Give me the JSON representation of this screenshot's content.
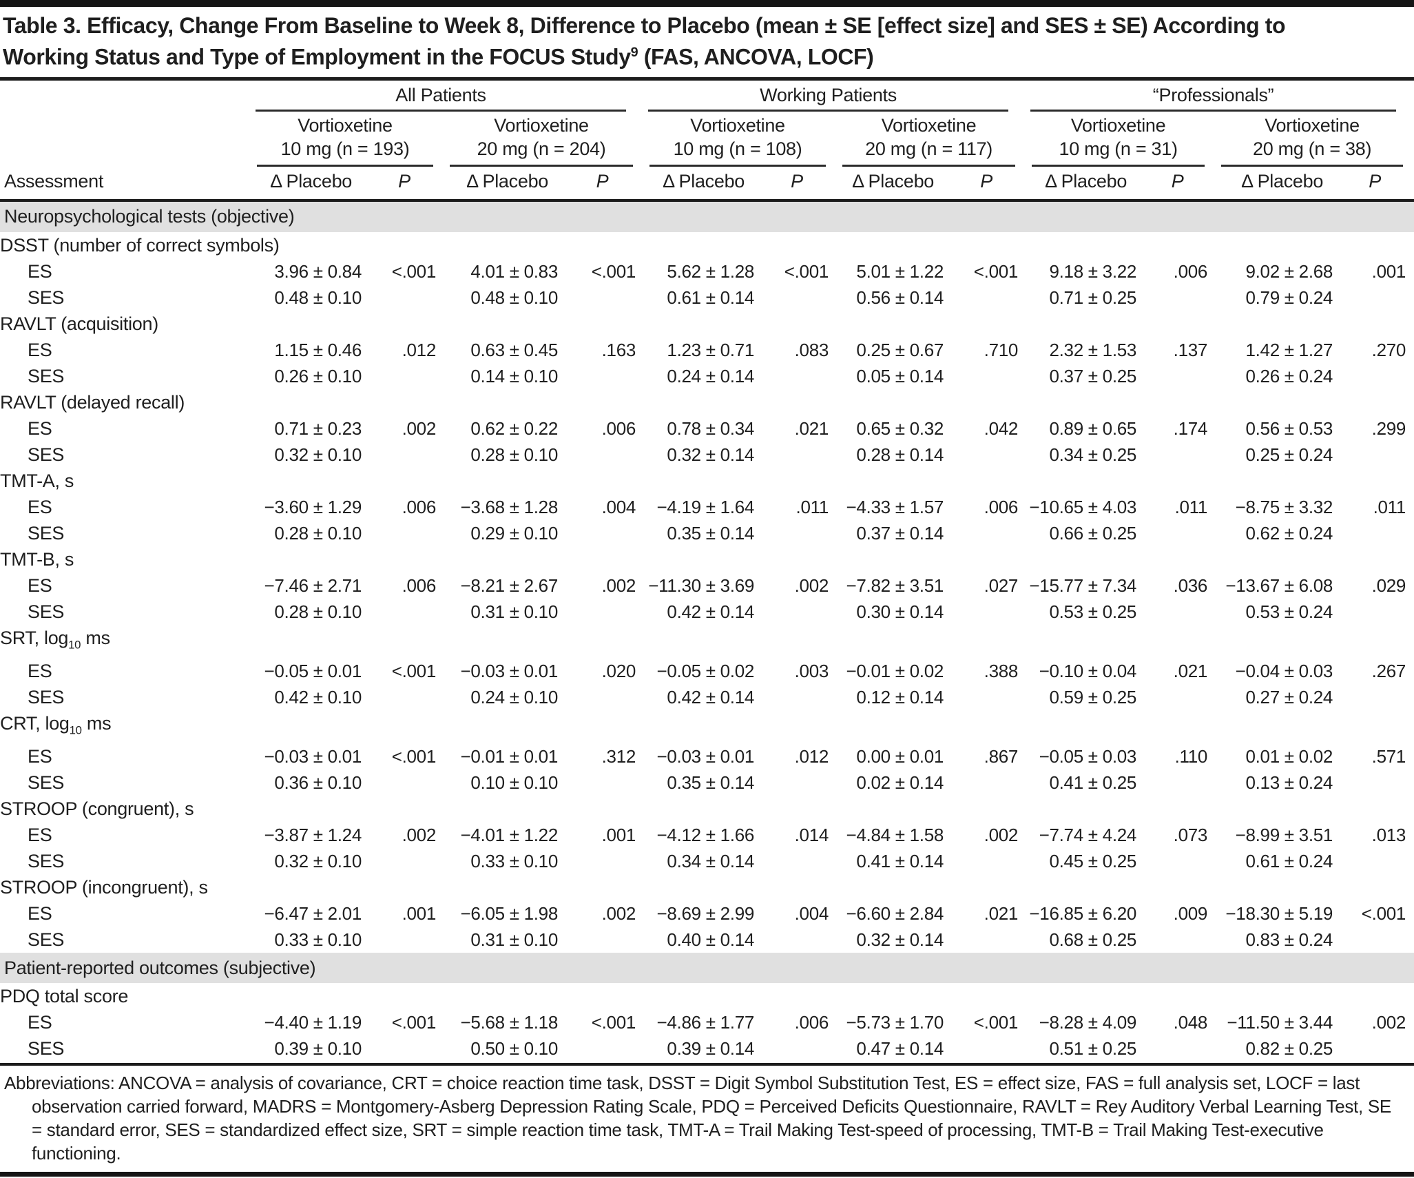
{
  "title": {
    "line1": "Table 3. Efficacy, Change From Baseline to Week 8, Difference to Placebo (mean ± SE [effect size] and SES ± SE) According to",
    "line2_pre": "Working Status and Type of Employment in the FOCUS Study",
    "line2_sup": "9",
    "line2_post": " (FAS, ANCOVA, LOCF)"
  },
  "header": {
    "assessment_label": "Assessment",
    "delta_label": "Δ Placebo",
    "p_label": "P",
    "groups": [
      "All Patients",
      "Working Patients",
      "“Professionals”"
    ],
    "arms": [
      {
        "drug": "Vortioxetine",
        "dose": "10 mg (n = 193)"
      },
      {
        "drug": "Vortioxetine",
        "dose": "20 mg (n = 204)"
      },
      {
        "drug": "Vortioxetine",
        "dose": "10 mg (n = 108)"
      },
      {
        "drug": "Vortioxetine",
        "dose": "20 mg (n = 117)"
      },
      {
        "drug": "Vortioxetine",
        "dose": "10 mg (n = 31)"
      },
      {
        "drug": "Vortioxetine",
        "dose": "20 mg (n = 38)"
      }
    ]
  },
  "row_labels": {
    "es": "ES",
    "ses": "SES"
  },
  "sections": [
    {
      "title": "Neuropsychological tests (objective)",
      "rows": [
        {
          "label": "DSST (number of correct symbols)",
          "es": [
            "3.96 ± 0.84",
            "<.001",
            "4.01 ± 0.83",
            "<.001",
            "5.62 ± 1.28",
            "<.001",
            "5.01 ± 1.22",
            "<.001",
            "9.18 ± 3.22",
            ".006",
            "9.02 ± 2.68",
            ".001"
          ],
          "ses": [
            "0.48 ± 0.10",
            "",
            "0.48 ± 0.10",
            "",
            "0.61 ± 0.14",
            "",
            "0.56 ± 0.14",
            "",
            "0.71 ± 0.25",
            "",
            "0.79 ± 0.24",
            ""
          ]
        },
        {
          "label": "RAVLT (acquisition)",
          "es": [
            "1.15 ± 0.46",
            ".012",
            "0.63 ± 0.45",
            ".163",
            "1.23 ± 0.71",
            ".083",
            "0.25 ± 0.67",
            ".710",
            "2.32 ± 1.53",
            ".137",
            "1.42 ± 1.27",
            ".270"
          ],
          "ses": [
            "0.26 ± 0.10",
            "",
            "0.14 ± 0.10",
            "",
            "0.24 ± 0.14",
            "",
            "0.05 ± 0.14",
            "",
            "0.37 ± 0.25",
            "",
            "0.26 ± 0.24",
            ""
          ]
        },
        {
          "label": "RAVLT (delayed recall)",
          "es": [
            "0.71 ± 0.23",
            ".002",
            "0.62 ± 0.22",
            ".006",
            "0.78 ± 0.34",
            ".021",
            "0.65 ± 0.32",
            ".042",
            "0.89 ± 0.65",
            ".174",
            "0.56 ± 0.53",
            ".299"
          ],
          "ses": [
            "0.32 ± 0.10",
            "",
            "0.28 ± 0.10",
            "",
            "0.32 ± 0.14",
            "",
            "0.28 ± 0.14",
            "",
            "0.34 ± 0.25",
            "",
            "0.25 ± 0.24",
            ""
          ]
        },
        {
          "label": "TMT-A, s",
          "es": [
            "−3.60 ± 1.29",
            ".006",
            "−3.68 ± 1.28",
            ".004",
            "−4.19 ± 1.64",
            ".011",
            "−4.33 ± 1.57",
            ".006",
            "−10.65 ± 4.03",
            ".011",
            "−8.75 ± 3.32",
            ".011"
          ],
          "ses": [
            "0.28 ± 0.10",
            "",
            "0.29 ± 0.10",
            "",
            "0.35 ± 0.14",
            "",
            "0.37 ± 0.14",
            "",
            "0.66 ± 0.25",
            "",
            "0.62 ± 0.24",
            ""
          ]
        },
        {
          "label": "TMT-B, s",
          "es": [
            "−7.46 ± 2.71",
            ".006",
            "−8.21 ± 2.67",
            ".002",
            "−11.30 ± 3.69",
            ".002",
            "−7.82 ± 3.51",
            ".027",
            "−15.77 ± 7.34",
            ".036",
            "−13.67 ± 6.08",
            ".029"
          ],
          "ses": [
            "0.28 ± 0.10",
            "",
            "0.31 ± 0.10",
            "",
            "0.42 ± 0.14",
            "",
            "0.30 ± 0.14",
            "",
            "0.53 ± 0.25",
            "",
            "0.53 ± 0.24",
            ""
          ]
        },
        {
          "label": "SRT, log",
          "label_sub": "10",
          "label_post": " ms",
          "es": [
            "−0.05 ± 0.01",
            "<.001",
            "−0.03 ± 0.01",
            ".020",
            "−0.05 ± 0.02",
            ".003",
            "−0.01 ± 0.02",
            ".388",
            "−0.10 ± 0.04",
            ".021",
            "−0.04 ± 0.03",
            ".267"
          ],
          "ses": [
            "0.42 ± 0.10",
            "",
            "0.24 ± 0.10",
            "",
            "0.42 ± 0.14",
            "",
            "0.12 ± 0.14",
            "",
            "0.59 ± 0.25",
            "",
            "0.27 ± 0.24",
            ""
          ]
        },
        {
          "label": "CRT, log",
          "label_sub": "10",
          "label_post": " ms",
          "es": [
            "−0.03 ± 0.01",
            "<.001",
            "−0.01 ± 0.01",
            ".312",
            "−0.03 ± 0.01",
            ".012",
            "0.00 ± 0.01",
            ".867",
            "−0.05 ± 0.03",
            ".110",
            "0.01 ± 0.02",
            ".571"
          ],
          "ses": [
            "0.36 ± 0.10",
            "",
            "0.10 ± 0.10",
            "",
            "0.35 ± 0.14",
            "",
            "0.02 ± 0.14",
            "",
            "0.41 ± 0.25",
            "",
            "0.13 ± 0.24",
            ""
          ]
        },
        {
          "label": "STROOP (congruent), s",
          "es": [
            "−3.87 ± 1.24",
            ".002",
            "−4.01 ± 1.22",
            ".001",
            "−4.12 ± 1.66",
            ".014",
            "−4.84 ± 1.58",
            ".002",
            "−7.74 ± 4.24",
            ".073",
            "−8.99 ± 3.51",
            ".013"
          ],
          "ses": [
            "0.32 ± 0.10",
            "",
            "0.33 ± 0.10",
            "",
            "0.34 ± 0.14",
            "",
            "0.41 ± 0.14",
            "",
            "0.45 ± 0.25",
            "",
            "0.61 ± 0.24",
            ""
          ]
        },
        {
          "label": "STROOP (incongruent), s",
          "es": [
            "−6.47 ± 2.01",
            ".001",
            "−6.05 ± 1.98",
            ".002",
            "−8.69 ± 2.99",
            ".004",
            "−6.60 ± 2.84",
            ".021",
            "−16.85 ± 6.20",
            ".009",
            "−18.30 ± 5.19",
            "<.001"
          ],
          "ses": [
            "0.33 ± 0.10",
            "",
            "0.31 ± 0.10",
            "",
            "0.40 ± 0.14",
            "",
            "0.32 ± 0.14",
            "",
            "0.68 ± 0.25",
            "",
            "0.83 ± 0.24",
            ""
          ]
        }
      ]
    },
    {
      "title": "Patient-reported outcomes (subjective)",
      "rows": [
        {
          "label": "PDQ total score",
          "es": [
            "−4.40 ± 1.19",
            "<.001",
            "−5.68 ± 1.18",
            "<.001",
            "−4.86 ± 1.77",
            ".006",
            "−5.73 ± 1.70",
            "<.001",
            "−8.28 ± 4.09",
            ".048",
            "−11.50 ± 3.44",
            ".002"
          ],
          "ses": [
            "0.39 ± 0.10",
            "",
            "0.50 ± 0.10",
            "",
            "0.39 ± 0.14",
            "",
            "0.47 ± 0.14",
            "",
            "0.51 ± 0.25",
            "",
            "0.82 ± 0.25",
            ""
          ]
        }
      ]
    }
  ],
  "footnote": "Abbreviations: ANCOVA = analysis of covariance, CRT = choice reaction time task, DSST = Digit Symbol Substitution Test, ES = effect size, FAS = full analysis set, LOCF = last observation carried forward, MADRS = Montgomery-Asberg Depression Rating Scale, PDQ = Perceived Deficits Questionnaire, RAVLT = Rey Auditory Verbal Learning Test, SE = standard error, SES = standardized effect size, SRT = simple reaction time task, TMT-A = Trail Making Test-speed of processing, TMT-B = Trail Making Test-executive functioning."
}
